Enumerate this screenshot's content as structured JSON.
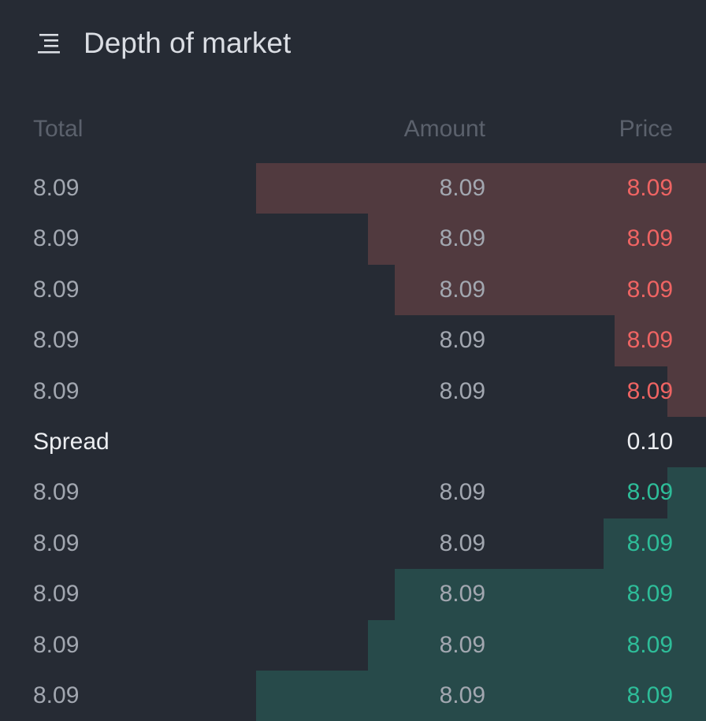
{
  "header": {
    "title": "Depth of market",
    "menu_icon": "menu-lines-icon"
  },
  "columns": {
    "total": "Total",
    "amount": "Amount",
    "price": "Price"
  },
  "colors": {
    "background": "#262b34",
    "ask_price": "#ef6463",
    "ask_depth": "#513a3f",
    "bid_price": "#2ebd99",
    "bid_depth": "#274a4a",
    "muted_text": "#a2a7b0",
    "header_text": "#5b616c"
  },
  "asks": [
    {
      "total": "8.09",
      "amount": "8.09",
      "price": "8.09",
      "depth": 0.637
    },
    {
      "total": "8.09",
      "amount": "8.09",
      "price": "8.09",
      "depth": 0.479
    },
    {
      "total": "8.09",
      "amount": "8.09",
      "price": "8.09",
      "depth": 0.441
    },
    {
      "total": "8.09",
      "amount": "8.09",
      "price": "8.09",
      "depth": 0.13
    },
    {
      "total": "8.09",
      "amount": "8.09",
      "price": "8.09",
      "depth": 0.055
    }
  ],
  "spread": {
    "label": "Spread",
    "value": "0.10"
  },
  "bids": [
    {
      "total": "8.09",
      "amount": "8.09",
      "price": "8.09",
      "depth": 0.055
    },
    {
      "total": "8.09",
      "amount": "8.09",
      "price": "8.09",
      "depth": 0.145
    },
    {
      "total": "8.09",
      "amount": "8.09",
      "price": "8.09",
      "depth": 0.441
    },
    {
      "total": "8.09",
      "amount": "8.09",
      "price": "8.09",
      "depth": 0.479
    },
    {
      "total": "8.09",
      "amount": "8.09",
      "price": "8.09",
      "depth": 0.637
    }
  ]
}
